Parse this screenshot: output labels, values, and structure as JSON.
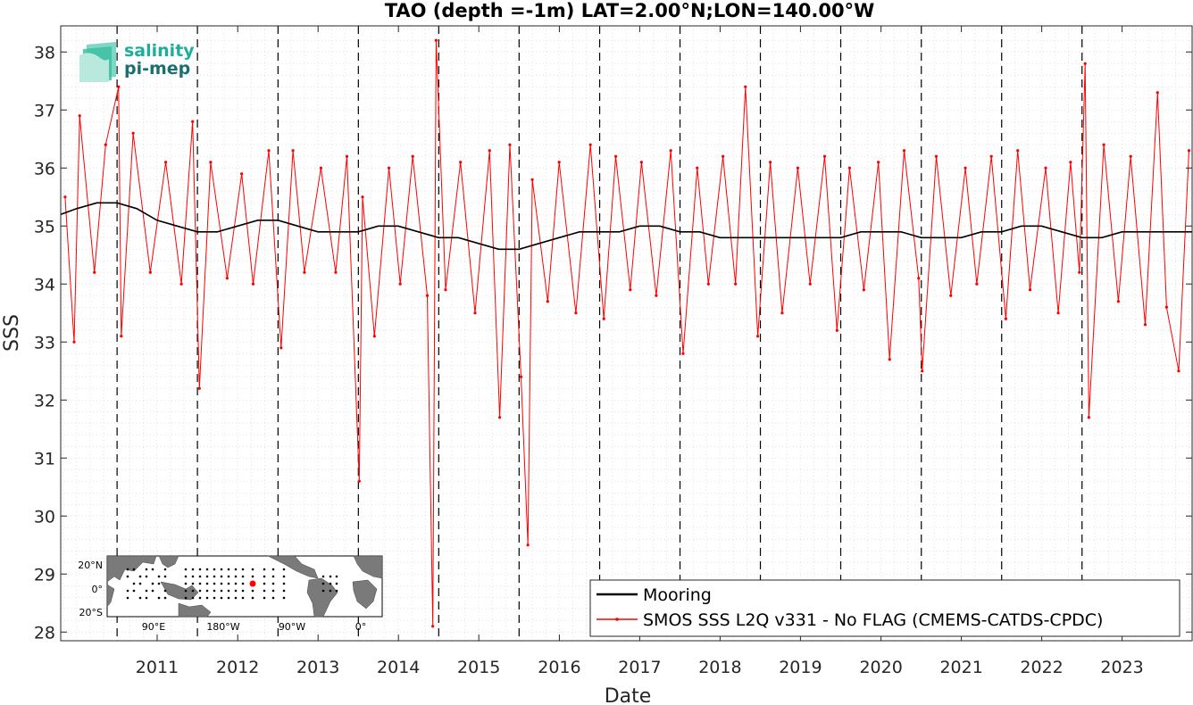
{
  "logo": {
    "line1": "salinity",
    "line2": "pi-mep"
  },
  "inset_map": {
    "lat_labels": [
      "20°N",
      "0°",
      "20°S"
    ],
    "lon_labels": [
      "90°E",
      "180°W",
      "90°W",
      "0°"
    ],
    "marker_color": "#ff0000"
  },
  "chart_data": {
    "type": "line",
    "title": "TAO (depth =-1m) LAT=2.00°N;LON=140.00°W",
    "xlabel": "Date",
    "ylabel": "SSS",
    "xlim": [
      "2010-04-20",
      "2024-05-15"
    ],
    "ylim": [
      27.85,
      38.45
    ],
    "yticks": [
      28,
      29,
      30,
      31,
      32,
      33,
      34,
      35,
      36,
      37,
      38
    ],
    "xticks": [
      "2011",
      "2012",
      "2013",
      "2014",
      "2015",
      "2016",
      "2017",
      "2018",
      "2019",
      "2020",
      "2021",
      "2022",
      "2023"
    ],
    "year_boundary_lines": [
      "2011-01-01",
      "2012-01-01",
      "2013-01-01",
      "2014-01-01",
      "2015-01-01",
      "2016-01-01",
      "2017-01-01",
      "2018-01-01",
      "2019-01-01",
      "2020-01-01",
      "2021-01-01",
      "2022-01-01",
      "2023-01-01"
    ],
    "grid": "minor dotted",
    "legend_position": "bottom-right",
    "series": [
      {
        "name": "Mooring",
        "color": "#000000",
        "style": "line",
        "x": [
          "2010-04-20",
          "2010-07-01",
          "2010-10-01",
          "2011-01-01",
          "2011-04-01",
          "2011-07-01",
          "2011-10-01",
          "2012-01-01",
          "2012-04-01",
          "2012-07-01",
          "2012-10-01",
          "2013-01-01",
          "2013-04-01",
          "2013-07-01",
          "2013-10-01",
          "2014-01-01",
          "2014-04-01",
          "2014-07-01",
          "2014-10-01",
          "2015-01-01",
          "2015-04-01",
          "2015-07-01",
          "2015-10-01",
          "2016-01-01",
          "2016-04-01",
          "2016-07-01",
          "2016-10-01",
          "2017-01-01",
          "2017-04-01",
          "2017-07-01",
          "2017-10-01",
          "2018-01-01",
          "2018-04-01",
          "2018-07-01",
          "2018-10-01",
          "2019-01-01",
          "2019-04-01",
          "2019-07-01",
          "2019-10-01",
          "2020-01-01",
          "2020-04-01",
          "2020-07-01",
          "2020-10-01",
          "2021-01-01",
          "2021-04-01",
          "2021-07-01",
          "2021-10-01",
          "2022-01-01",
          "2022-04-01",
          "2022-07-01",
          "2022-10-01",
          "2023-01-01",
          "2023-04-01",
          "2023-07-01",
          "2023-10-01",
          "2024-01-01",
          "2024-05-15"
        ],
        "y": [
          35.2,
          35.3,
          35.4,
          35.4,
          35.3,
          35.1,
          35.0,
          34.9,
          34.9,
          35.0,
          35.1,
          35.1,
          35.0,
          34.9,
          34.9,
          34.9,
          35.0,
          35.0,
          34.9,
          34.8,
          34.8,
          34.7,
          34.6,
          34.6,
          34.7,
          34.8,
          34.9,
          34.9,
          34.9,
          35.0,
          35.0,
          34.9,
          34.9,
          34.8,
          34.8,
          34.8,
          34.8,
          34.8,
          34.8,
          34.8,
          34.9,
          34.9,
          34.9,
          34.8,
          34.8,
          34.8,
          34.9,
          34.9,
          35.0,
          35.0,
          34.9,
          34.8,
          34.8,
          34.9,
          34.9,
          34.9,
          34.9
        ]
      },
      {
        "name": "SMOS SSS L2Q v331 - No FLAG  (CMEMS-CATDS-CPDC)",
        "color": "#ff0000",
        "style": "line-dots",
        "x": [
          "2010-05-10",
          "2010-06-20",
          "2010-07-15",
          "2010-09-20",
          "2010-11-10",
          "2011-01-08",
          "2011-01-20",
          "2011-03-15",
          "2011-06-01",
          "2011-08-10",
          "2011-10-20",
          "2011-12-10",
          "2012-01-10",
          "2012-03-01",
          "2012-05-15",
          "2012-07-20",
          "2012-09-10",
          "2012-11-20",
          "2013-01-15",
          "2013-03-10",
          "2013-05-01",
          "2013-07-15",
          "2013-09-20",
          "2013-11-10",
          "2014-01-05",
          "2014-01-20",
          "2014-03-15",
          "2014-05-20",
          "2014-07-10",
          "2014-09-05",
          "2014-11-10",
          "2014-12-05",
          "2014-12-20",
          "2015-02-01",
          "2015-04-10",
          "2015-06-15",
          "2015-08-20",
          "2015-10-05",
          "2015-11-20",
          "2016-01-10",
          "2016-02-10",
          "2016-03-01",
          "2016-05-10",
          "2016-07-01",
          "2016-09-15",
          "2016-11-20",
          "2017-01-20",
          "2017-03-15",
          "2017-05-20",
          "2017-07-10",
          "2017-09-15",
          "2017-11-20",
          "2018-01-15",
          "2018-03-20",
          "2018-05-10",
          "2018-07-15",
          "2018-09-10",
          "2018-10-25",
          "2018-12-20",
          "2019-02-15",
          "2019-04-10",
          "2019-06-20",
          "2019-08-15",
          "2019-10-20",
          "2019-12-15",
          "2020-02-10",
          "2020-04-15",
          "2020-06-20",
          "2020-08-10",
          "2020-10-15",
          "2020-12-20",
          "2021-01-05",
          "2021-03-10",
          "2021-05-15",
          "2021-07-20",
          "2021-09-10",
          "2021-11-15",
          "2022-01-20",
          "2022-03-15",
          "2022-05-10",
          "2022-07-20",
          "2022-09-15",
          "2022-11-10",
          "2022-12-20",
          "2023-01-15",
          "2023-02-01",
          "2023-04-10",
          "2023-06-15",
          "2023-08-10",
          "2023-10-15",
          "2023-12-10",
          "2024-01-20",
          "2024-03-15",
          "2024-05-01"
        ],
        "y": [
          35.5,
          33.0,
          36.9,
          34.2,
          36.4,
          37.4,
          33.1,
          36.6,
          34.2,
          36.1,
          34.0,
          36.8,
          32.2,
          36.1,
          34.1,
          35.9,
          34.0,
          36.3,
          32.9,
          36.3,
          34.2,
          36.0,
          34.2,
          36.2,
          30.6,
          35.5,
          33.1,
          36.0,
          34.0,
          36.2,
          33.8,
          28.1,
          38.2,
          33.9,
          36.1,
          33.5,
          36.3,
          31.7,
          36.4,
          32.4,
          29.5,
          35.8,
          33.7,
          36.1,
          33.5,
          36.4,
          33.4,
          36.2,
          33.9,
          36.1,
          33.8,
          36.3,
          32.8,
          36.0,
          34.0,
          36.2,
          34.0,
          37.4,
          33.1,
          36.1,
          33.5,
          36.0,
          34.0,
          36.2,
          33.2,
          36.0,
          33.9,
          36.1,
          32.7,
          36.3,
          34.1,
          32.5,
          36.2,
          33.8,
          36.0,
          34.0,
          36.2,
          33.4,
          36.3,
          33.9,
          36.0,
          33.5,
          36.1,
          34.2,
          37.8,
          31.7,
          36.4,
          33.7,
          36.2,
          33.3,
          37.3,
          33.6,
          32.5,
          36.3
        ]
      }
    ]
  }
}
